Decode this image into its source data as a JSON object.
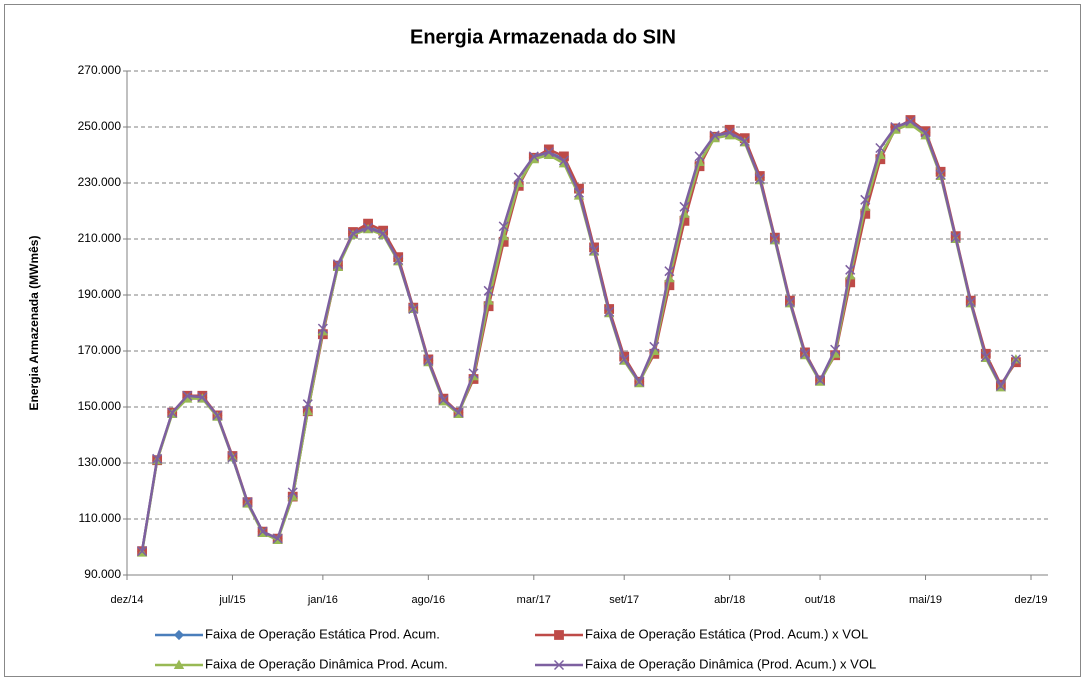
{
  "chart_data": {
    "type": "line",
    "title": "Energia Armazenada do SIN",
    "y_label": "Energia Armazenada (MWmês)",
    "x": [
      "2015-01",
      "2015-02",
      "2015-03",
      "2015-04",
      "2015-05",
      "2015-06",
      "2015-07",
      "2015-08",
      "2015-09",
      "2015-10",
      "2015-11",
      "2015-12",
      "2016-01",
      "2016-02",
      "2016-03",
      "2016-04",
      "2016-05",
      "2016-06",
      "2016-07",
      "2016-08",
      "2016-09",
      "2016-10",
      "2016-11",
      "2016-12",
      "2017-01",
      "2017-02",
      "2017-03",
      "2017-04",
      "2017-05",
      "2017-06",
      "2017-07",
      "2017-08",
      "2017-09",
      "2017-10",
      "2017-11",
      "2017-12",
      "2018-01",
      "2018-02",
      "2018-03",
      "2018-04",
      "2018-05",
      "2018-06",
      "2018-07",
      "2018-08",
      "2018-09",
      "2018-10",
      "2018-11",
      "2018-12",
      "2019-01",
      "2019-02",
      "2019-03",
      "2019-04",
      "2019-05",
      "2019-06",
      "2019-07",
      "2019-08",
      "2019-09",
      "2019-10",
      "2019-11"
    ],
    "series": [
      {
        "name": "Faixa de Operação Estática Prod. Acum.",
        "color": "#4a7ebb",
        "marker": "diamond",
        "values": [
          98500,
          131000,
          148000,
          153500,
          153500,
          147000,
          132000,
          116000,
          105500,
          103000,
          118000,
          148500,
          176500,
          200500,
          212000,
          214500,
          212000,
          203000,
          185500,
          166500,
          152500,
          148000,
          160500,
          187000,
          210000,
          229500,
          239000,
          241000,
          238500,
          227000,
          206500,
          184500,
          167500,
          159000,
          169500,
          195000,
          218000,
          237000,
          246500,
          248000,
          245000,
          232000,
          210000,
          187500,
          169000,
          159500,
          169000,
          196000,
          220000,
          239000,
          249500,
          251500,
          248000,
          233500,
          210500,
          187500,
          168000,
          157500,
          166500
        ]
      },
      {
        "name": "Faixa de Operação Estática (Prod. Acum.) x VOL",
        "color": "#be4b48",
        "marker": "square",
        "values": [
          98500,
          131000,
          148000,
          154000,
          154000,
          147000,
          132500,
          116000,
          105500,
          103000,
          118000,
          148500,
          176000,
          200500,
          212500,
          215500,
          213000,
          203500,
          185500,
          167000,
          153000,
          148000,
          160000,
          186000,
          209000,
          229000,
          239000,
          242000,
          239500,
          228000,
          207000,
          185000,
          168000,
          159000,
          169000,
          193500,
          216500,
          236000,
          246500,
          249000,
          246000,
          232500,
          210500,
          188000,
          169500,
          159500,
          168500,
          194500,
          219000,
          238500,
          249500,
          252500,
          248500,
          234000,
          211000,
          188000,
          169000,
          158000,
          166000
        ]
      },
      {
        "name": "Faixa de Operação Dinâmica Prod. Acum.",
        "color": "#98b954",
        "marker": "triangle",
        "values": [
          98000,
          131000,
          147500,
          153000,
          153000,
          146500,
          132000,
          115500,
          105000,
          102500,
          118000,
          148500,
          177000,
          200000,
          211500,
          213500,
          211500,
          202000,
          185000,
          166000,
          152000,
          147500,
          161000,
          188000,
          211000,
          230000,
          238500,
          240000,
          237000,
          225500,
          205500,
          183500,
          166500,
          158500,
          170000,
          196000,
          219000,
          237500,
          246000,
          247000,
          244500,
          231000,
          209500,
          187000,
          168500,
          159000,
          169000,
          197000,
          221500,
          240000,
          249000,
          251000,
          247000,
          232500,
          210000,
          187000,
          167500,
          157000,
          167000
        ]
      },
      {
        "name": "Faixa de Operação Dinâmica (Prod. Acum.) x VOL",
        "color": "#7d60a0",
        "marker": "x",
        "values": [
          98500,
          131500,
          148000,
          154000,
          153500,
          147000,
          132000,
          116000,
          105500,
          103000,
          119500,
          151000,
          178000,
          201000,
          212000,
          214000,
          212000,
          202500,
          185000,
          166500,
          152500,
          148000,
          162000,
          191500,
          214500,
          232000,
          239500,
          241000,
          238000,
          226500,
          206000,
          184000,
          167000,
          159000,
          171500,
          198500,
          221500,
          239500,
          247000,
          248000,
          245000,
          231500,
          210000,
          187500,
          169000,
          159500,
          170500,
          199000,
          224000,
          242500,
          250000,
          252000,
          248000,
          233000,
          210500,
          187500,
          168000,
          157500,
          167000
        ]
      }
    ],
    "xlim": [
      "2014-12",
      "2019-12"
    ],
    "xticks": [
      {
        "value": "2014-12",
        "label": "dez/14"
      },
      {
        "value": "2015-07",
        "label": "jul/15"
      },
      {
        "value": "2016-01",
        "label": "jan/16"
      },
      {
        "value": "2016-08",
        "label": "ago/16"
      },
      {
        "value": "2017-03",
        "label": "mar/17"
      },
      {
        "value": "2017-09",
        "label": "set/17"
      },
      {
        "value": "2018-04",
        "label": "abr/18"
      },
      {
        "value": "2018-10",
        "label": "out/18"
      },
      {
        "value": "2019-05",
        "label": "mai/19"
      },
      {
        "value": "2019-12",
        "label": "dez/19"
      }
    ],
    "ylim": [
      90000,
      270000
    ],
    "yticks": [
      {
        "value": 90000,
        "label": "90.000"
      },
      {
        "value": 110000,
        "label": "110.000"
      },
      {
        "value": 130000,
        "label": "130.000"
      },
      {
        "value": 150000,
        "label": "150.000"
      },
      {
        "value": 170000,
        "label": "170.000"
      },
      {
        "value": 190000,
        "label": "190.000"
      },
      {
        "value": 210000,
        "label": "210.000"
      },
      {
        "value": 230000,
        "label": "230.000"
      },
      {
        "value": 250000,
        "label": "250.000"
      },
      {
        "value": 270000,
        "label": "270.000"
      }
    ],
    "grid": true,
    "legend": "bottom"
  }
}
